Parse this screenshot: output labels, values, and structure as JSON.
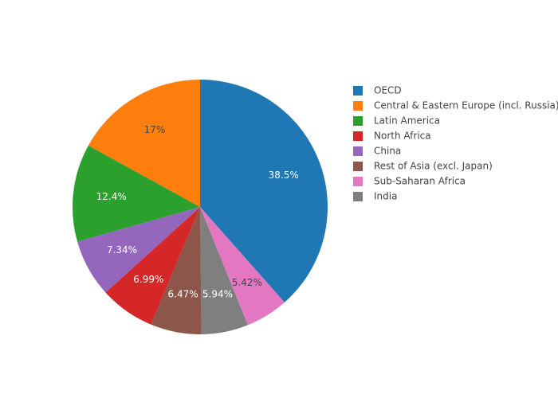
{
  "chart_data": {
    "type": "pie",
    "labels": [
      "OECD",
      "Central & Eastern Europe (incl. Russia)",
      "Latin America",
      "North Africa",
      "China",
      "Rest of Asia (excl. Japan)",
      "Sub-Saharan Africa",
      "India"
    ],
    "values": [
      38.5,
      17,
      12.4,
      6.99,
      7.34,
      6.47,
      5.42,
      5.94
    ],
    "slice_labels": [
      "38.5%",
      "17%",
      "12.4%",
      "6.99%",
      "7.34%",
      "6.47%",
      "5.42%",
      "5.94%"
    ],
    "colors": [
      "#1f77b4",
      "#ff7f0e",
      "#2ca02c",
      "#d62728",
      "#9467bd",
      "#8c564b",
      "#e377c2",
      "#7f7f7f"
    ],
    "slice_order": [
      "OECD",
      "Sub-Saharan Africa",
      "India",
      "Rest of Asia (excl. Japan)",
      "North Africa",
      "China",
      "Latin America",
      "Central & Eastern Europe (incl. Russia)"
    ],
    "direction": "clockwise",
    "start_angle": "12 o'clock",
    "legend": "right"
  }
}
